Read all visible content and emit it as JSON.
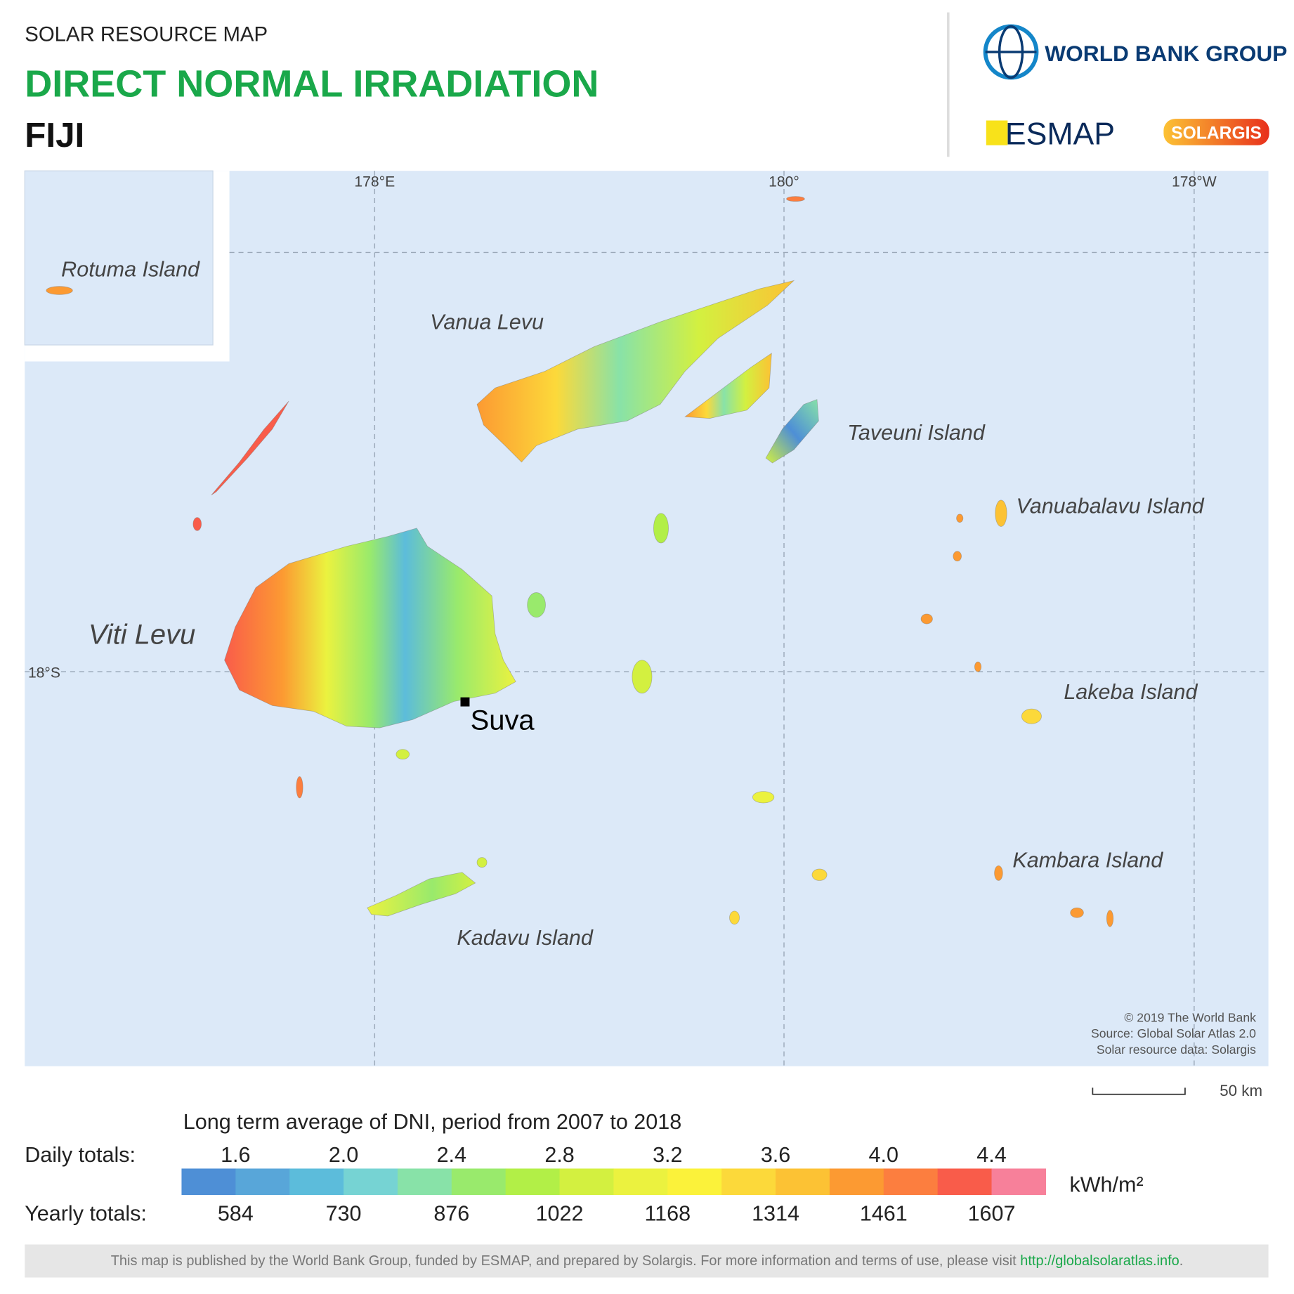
{
  "header": {
    "kicker": "SOLAR RESOURCE MAP",
    "title": "DIRECT NORMAL IRRADIATION",
    "country": "FIJI"
  },
  "logos": {
    "world_bank": "WORLD BANK GROUP",
    "esmap": "ESMAP",
    "solargis": "SOLARGIS"
  },
  "map": {
    "grid_labels": [
      "178°E",
      "180°",
      "178°W",
      "18°S"
    ],
    "places": [
      "Rotuma Island",
      "Vanua Levu",
      "Taveuni Island",
      "Vanuabalavu Island",
      "Viti Levu",
      "Lakeba Island",
      "Kambara Island",
      "Kadavu Island"
    ],
    "city": "Suva",
    "credits": [
      "© 2019 The World Bank",
      "Source: Global Solar Atlas 2.0",
      "Solar resource data: Solargis"
    ],
    "scale": "50 km"
  },
  "legend": {
    "title": "Long term average of DNI, period from 2007 to 2018",
    "daily_label": "Daily totals:",
    "yearly_label": "Yearly totals:",
    "unit": "kWh/m²",
    "daily": [
      "1.6",
      "2.0",
      "2.4",
      "2.8",
      "3.2",
      "3.6",
      "4.0",
      "4.4"
    ],
    "yearly": [
      "584",
      "730",
      "876",
      "1022",
      "1168",
      "1314",
      "1461",
      "1607"
    ],
    "colors": [
      "#4e8fd6",
      "#58a6d9",
      "#5cbcdb",
      "#76d3d3",
      "#88e2a8",
      "#99ea6c",
      "#b2ef47",
      "#d3f040",
      "#ebf23f",
      "#fbf23a",
      "#fcd93a",
      "#fcc234",
      "#fc9a32",
      "#fc7e3f",
      "#f95c4a",
      "#f7809a"
    ]
  },
  "footer": {
    "text": "This map is published by the World Bank Group, funded by ESMAP, and prepared by Solargis. For more information and terms of use, please visit ",
    "link": "http://globalsolaratlas.info",
    "end": "."
  }
}
